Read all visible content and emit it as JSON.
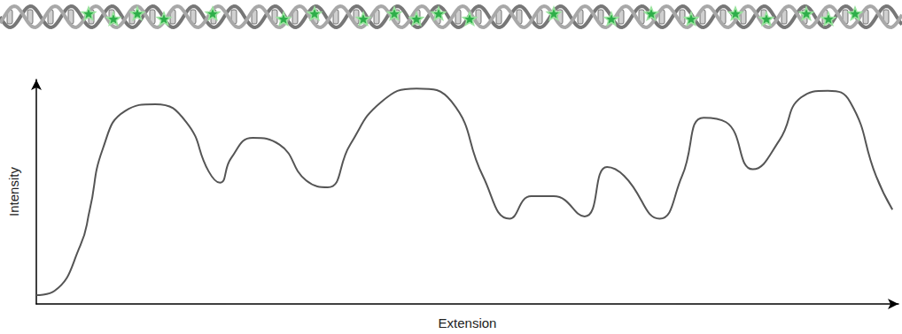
{
  "chart_data": {
    "type": "line",
    "x_label": "Extension",
    "y_label": "Intensity",
    "xlim": [
      0,
      100
    ],
    "ylim": [
      0,
      100
    ],
    "tick_labels": false,
    "grid": false,
    "color": "#555555",
    "line_style": "solid",
    "x": [
      0,
      2.1,
      5.1,
      6.2,
      7.7,
      10.3,
      13.8,
      17.4,
      20,
      21.3,
      22.6,
      25.1,
      28.2,
      31.3,
      33.8,
      36.4,
      40,
      44.1,
      48.2,
      51.8,
      54.9,
      57.4,
      60,
      63.6,
      66.2,
      68.2,
      72.3,
      74.9,
      77.4,
      80,
      83.1,
      86.2,
      88.7,
      91.8,
      94.4,
      97.4,
      99.3
    ],
    "values": [
      3.9,
      5.8,
      26,
      42,
      69,
      86,
      89,
      81,
      59,
      54,
      65,
      74,
      71,
      55,
      52,
      71,
      90,
      96,
      90,
      57,
      38,
      48,
      48,
      39,
      61,
      57,
      38,
      57,
      83,
      81,
      60,
      73,
      92,
      95,
      90,
      57,
      42
    ]
  }
}
